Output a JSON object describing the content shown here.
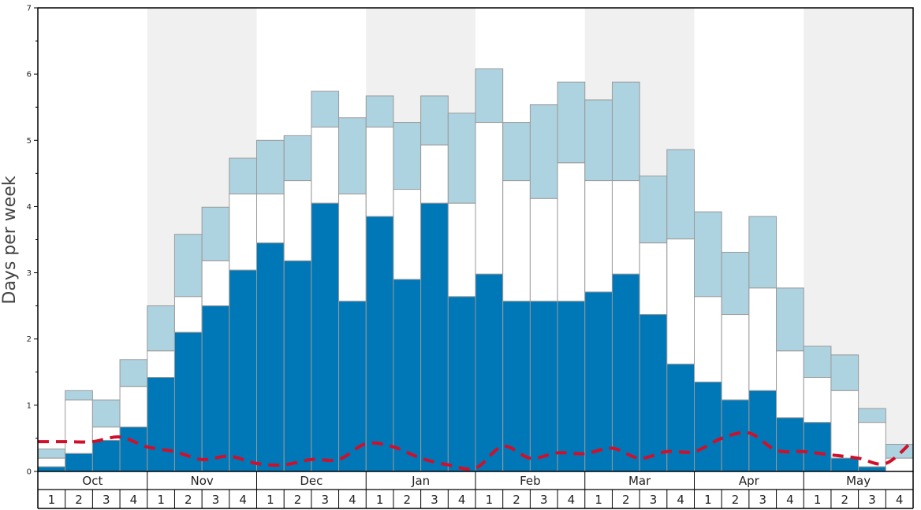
{
  "chart_data": {
    "type": "bar",
    "ylabel": "Days per week",
    "ylim": [
      0,
      7
    ],
    "yticks": [
      0,
      1,
      2,
      3,
      4,
      5,
      6,
      7
    ],
    "months": [
      "Oct",
      "Nov",
      "Dec",
      "Jan",
      "Feb",
      "Mar",
      "Apr",
      "May"
    ],
    "weeks": [
      "1",
      "2",
      "3",
      "4"
    ],
    "colors": {
      "lower": "#0077b6",
      "middle": "#ffffff",
      "upper": "#aed3e0",
      "line": "#d0102a",
      "band": "#f0f0f0",
      "bar_border": "#999999"
    },
    "series": [
      {
        "values": [
          0.07,
          0.27,
          0.47,
          0.67,
          1.42,
          2.1,
          2.5,
          3.04,
          3.45,
          3.18,
          4.05,
          2.57,
          3.85,
          2.9,
          4.05,
          2.64,
          2.98,
          2.57,
          2.57,
          2.57,
          2.71,
          2.98,
          2.37,
          1.62,
          1.35,
          1.08,
          1.22,
          0.81,
          0.74,
          0.2,
          0.07,
          0.0,
          null
        ]
      },
      {
        "values": [
          0.2,
          1.08,
          0.67,
          1.28,
          1.82,
          2.64,
          3.18,
          4.19,
          4.19,
          4.39,
          5.2,
          4.19,
          5.2,
          4.26,
          4.93,
          4.05,
          5.27,
          4.39,
          4.12,
          4.66,
          4.39,
          4.39,
          3.45,
          3.51,
          2.64,
          2.37,
          2.77,
          1.82,
          1.42,
          1.22,
          0.74,
          0.2,
          null
        ]
      },
      {
        "values": [
          0.34,
          1.22,
          1.08,
          1.69,
          2.5,
          3.58,
          3.99,
          4.73,
          5.0,
          5.07,
          5.74,
          5.34,
          5.67,
          5.27,
          5.67,
          5.41,
          6.08,
          5.27,
          5.54,
          5.88,
          5.61,
          5.88,
          4.46,
          4.86,
          3.92,
          3.31,
          3.85,
          2.77,
          1.89,
          1.76,
          0.95,
          0.41,
          null
        ]
      },
      {
        "values": [
          0.45,
          0.45,
          0.45,
          0.52,
          0.37,
          0.3,
          0.18,
          0.23,
          0.12,
          0.1,
          0.18,
          0.18,
          0.42,
          0.37,
          0.2,
          0.1,
          0.05,
          0.38,
          0.2,
          0.28,
          0.27,
          0.35,
          0.2,
          0.3,
          0.3,
          0.5,
          0.58,
          0.32,
          0.3,
          0.25,
          0.2,
          0.12,
          0.47
        ]
      }
    ]
  }
}
